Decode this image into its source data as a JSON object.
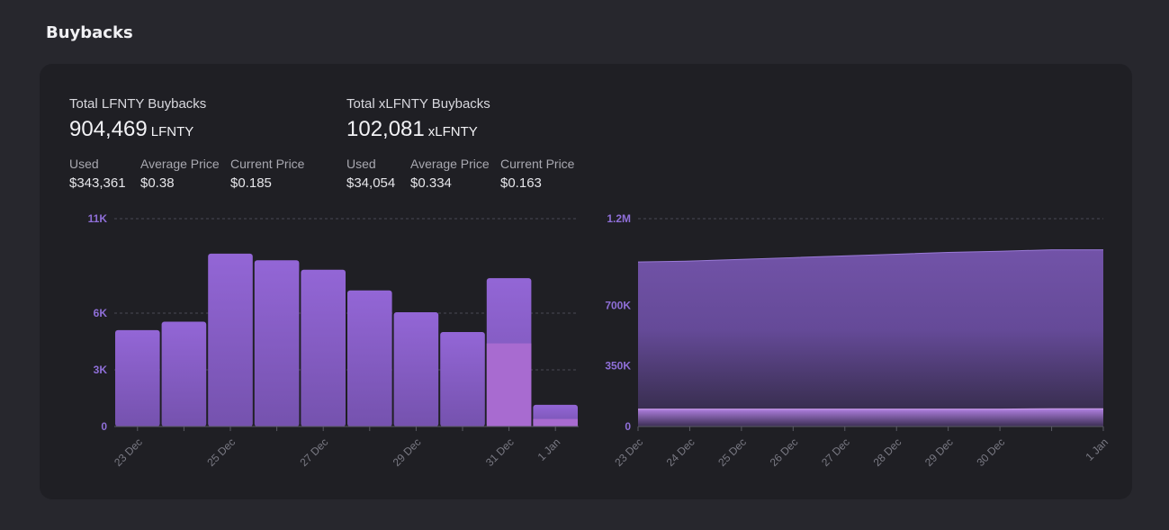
{
  "page_title": "Buybacks",
  "lfnty": {
    "label": "Total LFNTY Buybacks",
    "total": "904,469",
    "unit": "LFNTY",
    "used_label": "Used",
    "used": "$343,361",
    "avg_label": "Average Price",
    "avg": "$0.38",
    "cur_label": "Current Price",
    "cur": "$0.185"
  },
  "xlfnty": {
    "label": "Total xLFNTY Buybacks",
    "total": "102,081",
    "unit": "xLFNTY",
    "used_label": "Used",
    "used": "$34,054",
    "avg_label": "Average Price",
    "avg": "$0.334",
    "cur_label": "Current Price",
    "cur": "$0.163"
  },
  "colors": {
    "bar": "#8a62cf",
    "bar_highlight": "#a86bd0",
    "area": "#6f52a3",
    "accent": "#8f6fd8"
  },
  "chart_data": [
    {
      "type": "bar",
      "categories": [
        "23 Dec",
        "24 Dec",
        "25 Dec",
        "26 Dec",
        "27 Dec",
        "28 Dec",
        "29 Dec",
        "30 Dec",
        "31 Dec",
        "1 Jan"
      ],
      "tick_labels": [
        "23 Dec",
        "",
        "25 Dec",
        "",
        "27 Dec",
        "",
        "29 Dec",
        "",
        "31 Dec",
        "1 Jan"
      ],
      "values": [
        5100,
        5550,
        9150,
        8800,
        8300,
        7200,
        6050,
        5000,
        7850,
        1150
      ],
      "highlight_values": [
        0,
        0,
        0,
        0,
        0,
        0,
        0,
        0,
        4400,
        400
      ],
      "ylim": [
        0,
        11000
      ],
      "yticks": [
        0,
        3000,
        6000,
        11000
      ],
      "ytick_labels": [
        "0",
        "3K",
        "6K",
        "11K"
      ],
      "grid": true
    },
    {
      "type": "area",
      "x": [
        "23 Dec",
        "24 Dec",
        "25 Dec",
        "26 Dec",
        "27 Dec",
        "28 Dec",
        "29 Dec",
        "30 Dec",
        "31 Dec",
        "1 Jan"
      ],
      "tick_labels": [
        "23 Dec",
        "24 Dec",
        "25 Dec",
        "26 Dec",
        "27 Dec",
        "28 Dec",
        "29 Dec",
        "30 Dec",
        "",
        "1 Jan"
      ],
      "series": [
        {
          "values": [
            950000,
            955000,
            965000,
            975000,
            985000,
            995000,
            1005000,
            1012000,
            1020000,
            1020000
          ]
        },
        {
          "values": [
            100000,
            100000,
            100000,
            100000,
            100000,
            100000,
            100000,
            100000,
            102000,
            102000
          ]
        }
      ],
      "ylim": [
        0,
        1200000
      ],
      "yticks": [
        0,
        350000,
        700000,
        1200000
      ],
      "ytick_labels": [
        "0",
        "350K",
        "700K",
        "1.2M"
      ],
      "grid": true
    }
  ]
}
